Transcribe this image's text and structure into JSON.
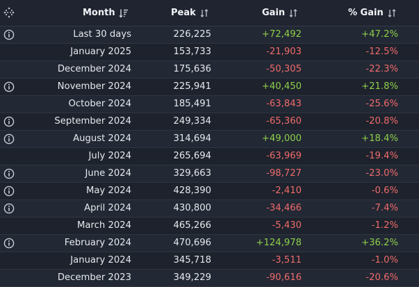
{
  "header": {
    "month": "Month",
    "peak": "Peak",
    "gain": "Gain",
    "pct_gain": "% Gain",
    "icons": {
      "drag": "drag-handle-icon",
      "month_sort": "sort-descending-icon",
      "sort": "sort-icon"
    }
  },
  "colors": {
    "positive": "#8fcf4a",
    "negative": "#f06b6b"
  },
  "rows": [
    {
      "month": "Last 30 days",
      "peak": "226,225",
      "gain": "+72,492",
      "pct": "+47.2%",
      "positive": true,
      "info": true
    },
    {
      "month": "January 2025",
      "peak": "153,733",
      "gain": "-21,903",
      "pct": "-12.5%",
      "positive": false,
      "info": false
    },
    {
      "month": "December 2024",
      "peak": "175,636",
      "gain": "-50,305",
      "pct": "-22.3%",
      "positive": false,
      "info": false
    },
    {
      "month": "November 2024",
      "peak": "225,941",
      "gain": "+40,450",
      "pct": "+21.8%",
      "positive": true,
      "info": true
    },
    {
      "month": "October 2024",
      "peak": "185,491",
      "gain": "-63,843",
      "pct": "-25.6%",
      "positive": false,
      "info": false
    },
    {
      "month": "September 2024",
      "peak": "249,334",
      "gain": "-65,360",
      "pct": "-20.8%",
      "positive": false,
      "info": true
    },
    {
      "month": "August 2024",
      "peak": "314,694",
      "gain": "+49,000",
      "pct": "+18.4%",
      "positive": true,
      "info": true
    },
    {
      "month": "July 2024",
      "peak": "265,694",
      "gain": "-63,969",
      "pct": "-19.4%",
      "positive": false,
      "info": false
    },
    {
      "month": "June 2024",
      "peak": "329,663",
      "gain": "-98,727",
      "pct": "-23.0%",
      "positive": false,
      "info": true
    },
    {
      "month": "May 2024",
      "peak": "428,390",
      "gain": "-2,410",
      "pct": "-0.6%",
      "positive": false,
      "info": true
    },
    {
      "month": "April 2024",
      "peak": "430,800",
      "gain": "-34,466",
      "pct": "-7.4%",
      "positive": false,
      "info": true
    },
    {
      "month": "March 2024",
      "peak": "465,266",
      "gain": "-5,430",
      "pct": "-1.2%",
      "positive": false,
      "info": false
    },
    {
      "month": "February 2024",
      "peak": "470,696",
      "gain": "+124,978",
      "pct": "+36.2%",
      "positive": true,
      "info": true
    },
    {
      "month": "January 2024",
      "peak": "345,718",
      "gain": "-3,511",
      "pct": "-1.0%",
      "positive": false,
      "info": false
    },
    {
      "month": "December 2023",
      "peak": "349,229",
      "gain": "-90,616",
      "pct": "-20.6%",
      "positive": false,
      "info": false
    }
  ]
}
